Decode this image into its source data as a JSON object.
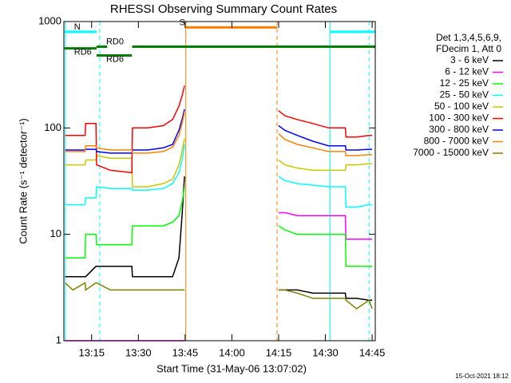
{
  "chart_data": {
    "type": "line",
    "title": "RHESSI Observing Summary Count Rates",
    "x_label": "Start Time (31-May-06 13:07:02)",
    "y_label": "Count Rate (s⁻¹ detector⁻¹)",
    "legend_header": [
      "Det 1,3,4,5,6,9,",
      "FDecim 1, Att 0"
    ],
    "footer": "15-Oct-2021 18:12",
    "log_y": true,
    "xlim": [
      786.1,
      886
    ],
    "ylim": [
      1,
      1000
    ],
    "xticks": [
      {
        "value": 795,
        "label": "13:15"
      },
      {
        "value": 810,
        "label": "13:30"
      },
      {
        "value": 825,
        "label": "13:45"
      },
      {
        "value": 840,
        "label": "14:00"
      },
      {
        "value": 855,
        "label": "14:15"
      },
      {
        "value": 870,
        "label": "14:30"
      },
      {
        "value": 885,
        "label": "14:45"
      }
    ],
    "yticks": [
      1,
      10,
      100,
      1000
    ],
    "x": [
      786.5,
      789,
      792.9,
      793.1,
      796.4,
      796.6,
      801,
      807.9,
      808.1,
      813,
      818,
      821,
      823,
      824,
      824.8,
      840,
      855,
      857,
      861,
      866,
      871,
      876.4,
      876.6,
      880,
      884,
      885
    ],
    "series": [
      {
        "name": "3 - 6 keV",
        "color": "#000000",
        "values": [
          4,
          4,
          4,
          4,
          5,
          5,
          5,
          5,
          4,
          4,
          4,
          4,
          6,
          15,
          35,
          null,
          3,
          3,
          3,
          2.8,
          2.8,
          2.8,
          2.5,
          2.5,
          2.4,
          2.4
        ]
      },
      {
        "name": "6 - 12 keV",
        "color": "#ff00ff",
        "values": [
          1,
          1,
          1,
          1,
          1,
          1,
          1,
          1,
          1,
          1,
          1,
          1,
          1,
          1,
          1,
          null,
          16,
          16,
          15,
          15,
          15,
          15,
          9,
          9,
          9,
          9
        ]
      },
      {
        "name": "12 - 25 keV",
        "color": "#00ff00",
        "values": [
          6,
          6,
          6,
          10,
          10,
          8,
          8,
          8,
          12,
          12,
          12,
          13,
          15,
          20,
          28,
          null,
          12,
          11,
          10,
          10,
          10,
          10,
          5,
          5,
          5,
          5
        ]
      },
      {
        "name": "25 - 50 keV",
        "color": "#00ffff",
        "values": [
          19,
          19,
          19,
          22,
          22,
          28,
          27,
          27,
          26,
          26,
          27,
          30,
          38,
          50,
          70,
          null,
          35,
          32,
          30,
          29,
          28,
          28,
          18,
          18,
          19,
          19
        ]
      },
      {
        "name": "50 - 100 keV",
        "color": "#c8c800",
        "values": [
          45,
          45,
          45,
          50,
          50,
          55,
          52,
          52,
          28,
          28,
          30,
          33,
          45,
          60,
          80,
          null,
          50,
          45,
          42,
          40,
          40,
          40,
          45,
          45,
          46,
          46
        ]
      },
      {
        "name": "100 - 300 keV",
        "color": "#ff0000",
        "values": [
          85,
          85,
          85,
          110,
          110,
          45,
          40,
          38,
          100,
          100,
          105,
          120,
          160,
          200,
          250,
          null,
          145,
          130,
          120,
          110,
          100,
          100,
          82,
          82,
          85,
          85
        ]
      },
      {
        "name": "300 - 800 keV",
        "color": "#0000ff",
        "values": [
          62,
          62,
          62,
          63,
          63,
          60,
          58,
          58,
          62,
          62,
          65,
          70,
          95,
          120,
          150,
          null,
          105,
          95,
          85,
          75,
          68,
          68,
          62,
          62,
          63,
          63
        ]
      },
      {
        "name": "800 - 7000 keV",
        "color": "#ff8000",
        "values": [
          60,
          60,
          60,
          68,
          68,
          65,
          62,
          62,
          58,
          58,
          60,
          66,
          85,
          110,
          140,
          null,
          88,
          78,
          70,
          65,
          60,
          60,
          55,
          55,
          56,
          56
        ]
      },
      {
        "name": "7000 - 15000 keV",
        "color": "#808000",
        "values": [
          3.5,
          3,
          3.5,
          3,
          3.5,
          3.5,
          3,
          3,
          3,
          3,
          3,
          3,
          3,
          3,
          3,
          null,
          3,
          3,
          2.8,
          2.5,
          2.5,
          2.5,
          2.4,
          2,
          2.4,
          2
        ]
      }
    ],
    "flags": [
      {
        "label": "N",
        "color": "#00ffff",
        "level": 800,
        "segments": [
          [
            786.3,
            796.6
          ],
          [
            871.5,
            886
          ]
        ]
      },
      {
        "label": "RD0",
        "color": "#008000",
        "level": 580,
        "segments": [
          [
            796.6,
            800
          ],
          [
            808,
            886
          ]
        ]
      },
      {
        "label": "RD6",
        "color": "#008000",
        "level": 560,
        "segments": [
          [
            786.3,
            796.6
          ]
        ]
      },
      {
        "label": "RD6",
        "color": "#008000",
        "level": 480,
        "segments": [
          [
            796.6,
            807.9
          ]
        ]
      },
      {
        "label": "S",
        "color": "#ff8000",
        "level": 880,
        "segments": [
          [
            825.2,
            854.5
          ]
        ]
      }
    ],
    "markers": [
      {
        "x": 786.6,
        "color": "#00ffff",
        "dashed": false
      },
      {
        "x": 797.6,
        "color": "#00ffff",
        "dashed": true
      },
      {
        "x": 825.2,
        "color": "#ff8000",
        "dashed": false
      },
      {
        "x": 854.5,
        "color": "#ff8000",
        "dashed": true
      },
      {
        "x": 871.5,
        "color": "#00ffff",
        "dashed": false
      },
      {
        "x": 884,
        "color": "#00ffff",
        "dashed": true
      }
    ]
  }
}
